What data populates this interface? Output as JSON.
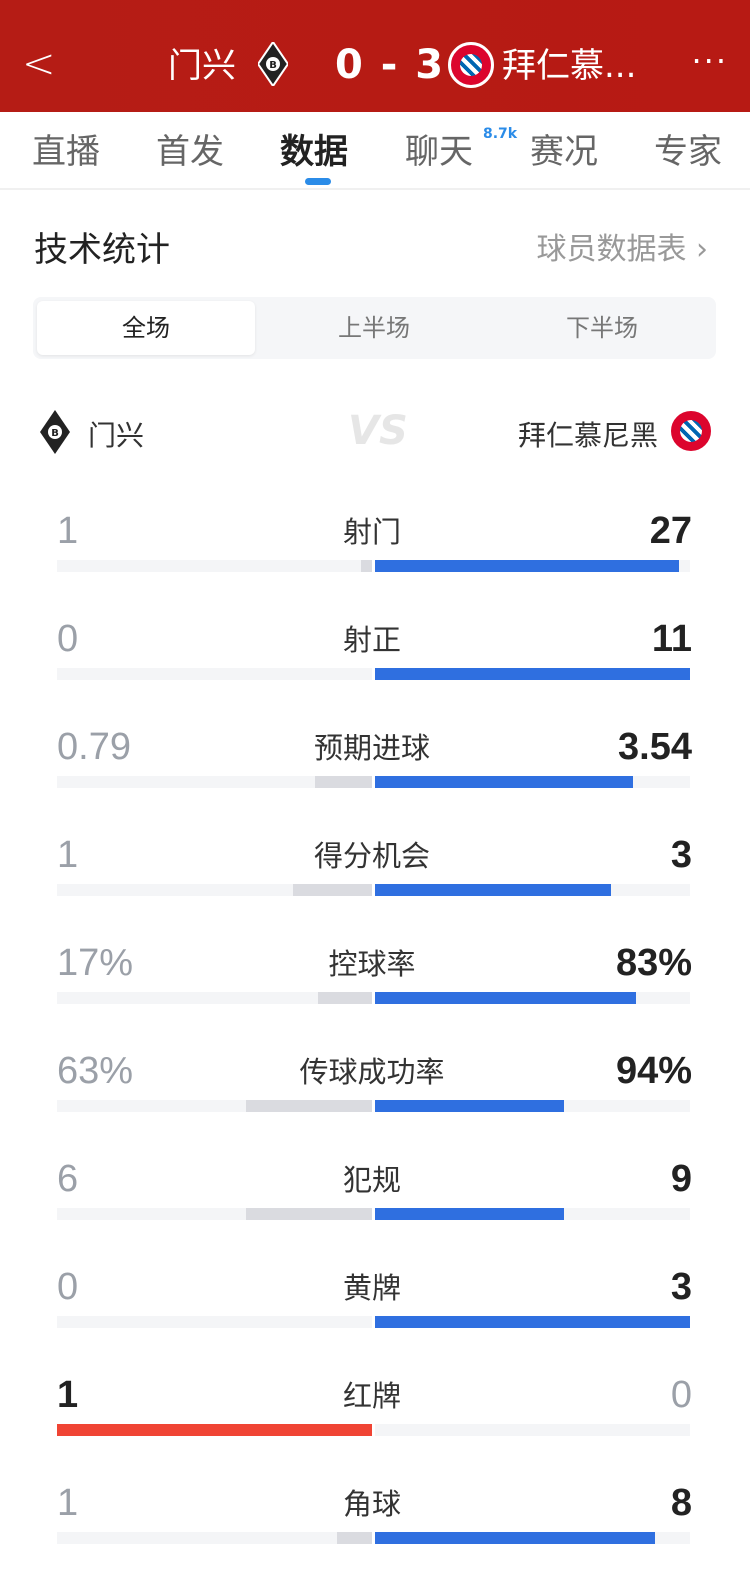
{
  "header": {
    "home": "门兴",
    "score": "0 - 3",
    "away": "拜仁慕...",
    "more": "···",
    "back": "<"
  },
  "tabs": [
    {
      "label": "直播"
    },
    {
      "label": "首发"
    },
    {
      "label": "数据",
      "active": true
    },
    {
      "label": "聊天",
      "badge": "8.7k"
    },
    {
      "label": "赛况"
    },
    {
      "label": "专家"
    }
  ],
  "section": {
    "title": "技术统计",
    "link": "球员数据表 ›"
  },
  "segments": [
    {
      "label": "全场",
      "active": true
    },
    {
      "label": "上半场"
    },
    {
      "label": "下半场"
    }
  ],
  "teams": {
    "home": "门兴",
    "away": "拜仁慕尼黑",
    "vs": "VS"
  },
  "colors": {
    "header": "#b51c15",
    "away_bar": "#2f6fe0",
    "home_bar": "#dadbe0",
    "home_lead_bar": "#f04434",
    "active_tab": "#2b8ce8"
  },
  "stats": [
    {
      "label": "射门",
      "home": "1",
      "away": "27",
      "h": 1,
      "a": 27
    },
    {
      "label": "射正",
      "home": "0",
      "away": "11",
      "h": 0,
      "a": 11
    },
    {
      "label": "预期进球",
      "home": "0.79",
      "away": "3.54",
      "h": 0.79,
      "a": 3.54
    },
    {
      "label": "得分机会",
      "home": "1",
      "away": "3",
      "h": 1,
      "a": 3
    },
    {
      "label": "控球率",
      "home": "17%",
      "away": "83%",
      "h": 17,
      "a": 83
    },
    {
      "label": "传球成功率",
      "home": "63%",
      "away": "94%",
      "h": 63,
      "a": 94
    },
    {
      "label": "犯规",
      "home": "6",
      "away": "9",
      "h": 6,
      "a": 9
    },
    {
      "label": "黄牌",
      "home": "0",
      "away": "3",
      "h": 0,
      "a": 3
    },
    {
      "label": "红牌",
      "home": "1",
      "away": "0",
      "h": 1,
      "a": 0
    },
    {
      "label": "角球",
      "home": "1",
      "away": "8",
      "h": 1,
      "a": 8
    }
  ]
}
